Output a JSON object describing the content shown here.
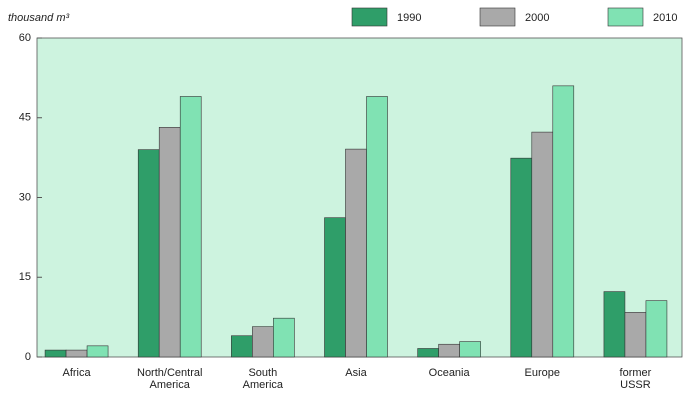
{
  "chart_data": {
    "type": "bar",
    "y_label": "thousand m³",
    "categories": [
      "Africa",
      "North/Central America",
      "South America",
      "Asia",
      "Oceania",
      "Europe",
      "former USSR"
    ],
    "series": [
      {
        "name": "1990",
        "color": "#2f9e69",
        "values": [
          1.3,
          39,
          4,
          26.2,
          1.6,
          37.4,
          12.3
        ]
      },
      {
        "name": "2000",
        "color": "#a9a9a9",
        "values": [
          1.3,
          43.2,
          5.7,
          39.1,
          2.4,
          42.3,
          8.4
        ]
      },
      {
        "name": "2010",
        "color": "#80e2b3",
        "values": [
          2.1,
          49,
          7.3,
          49,
          2.9,
          51,
          10.6
        ]
      }
    ],
    "ylim": [
      0,
      60
    ],
    "yticks": [
      0,
      15,
      30,
      45,
      60
    ],
    "legend": "top-right",
    "background": "#cdf3df"
  }
}
